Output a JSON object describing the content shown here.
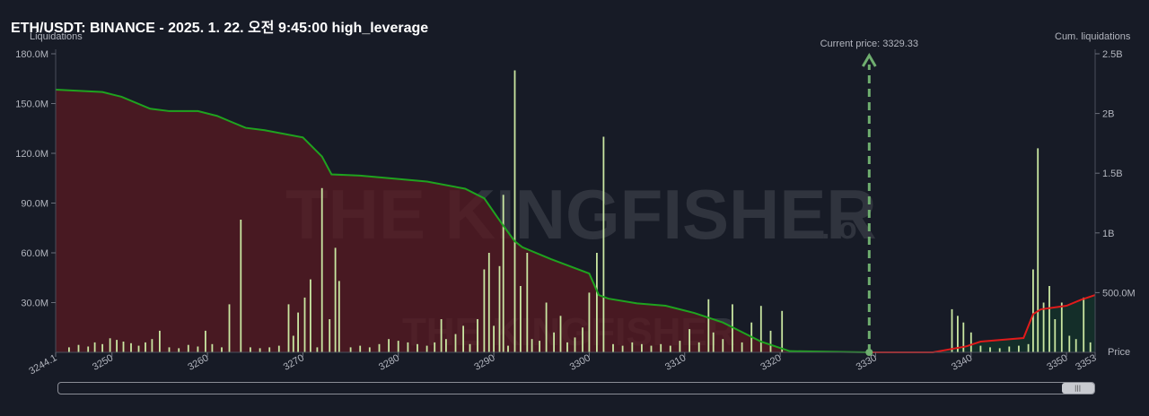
{
  "title": "ETH/USDT: BINANCE - 2025. 1. 22. 오전 9:45:00 high_leverage",
  "watermark": {
    "main": "THE KINGFISHER",
    "suffix": ".io"
  },
  "colors": {
    "background": "#171b26",
    "bars": "#c9e6a1",
    "cum_short": "#1fa31f",
    "cum_long": "#e01b1b",
    "fill_short": "#5a1a22",
    "fill_long": "#14332a",
    "current_price": "#6fae6f"
  },
  "chart_data": {
    "type": "bar",
    "title": "ETH/USDT: BINANCE - 2025. 1. 22. 오전 9:45:00 high_leverage",
    "xlabel": "Price",
    "ylabel": "Liquidations",
    "y2label": "Cum. liquidations",
    "xlim": [
      3244.1,
      3353
    ],
    "ylim": [
      0,
      180000000
    ],
    "y2lim": [
      0,
      2500000000
    ],
    "x_ticks": [
      "3244.1",
      "3250",
      "3260",
      "3270",
      "3280",
      "3290",
      "3300",
      "3310",
      "3320",
      "3330",
      "3340",
      "3350",
      "3353"
    ],
    "y_ticks": [
      "180.0M",
      "150.0M",
      "120.0M",
      "90.0M",
      "60.0M",
      "30.0M"
    ],
    "y2_ticks": [
      "2.5B",
      "2B",
      "1.5B",
      "1B",
      "500.0M"
    ],
    "current_price": {
      "label": "Current price: 3329.33",
      "value": 3329.33
    },
    "bars": [
      [
        3245.5,
        3000000
      ],
      [
        3246.5,
        4500000
      ],
      [
        3247.5,
        3500000
      ],
      [
        3248.2,
        6000000
      ],
      [
        3249.0,
        5000000
      ],
      [
        3249.8,
        8500000
      ],
      [
        3250.5,
        7500000
      ],
      [
        3251.2,
        6500000
      ],
      [
        3252.0,
        5500000
      ],
      [
        3252.8,
        4000000
      ],
      [
        3253.5,
        6000000
      ],
      [
        3254.2,
        8000000
      ],
      [
        3255.0,
        13000000
      ],
      [
        3256.0,
        3000000
      ],
      [
        3257.0,
        2500000
      ],
      [
        3258.0,
        4500000
      ],
      [
        3259.0,
        3500000
      ],
      [
        3259.8,
        13000000
      ],
      [
        3260.5,
        5000000
      ],
      [
        3261.5,
        3000000
      ],
      [
        3262.3,
        29000000
      ],
      [
        3263.5,
        80000000
      ],
      [
        3264.5,
        3000000
      ],
      [
        3265.5,
        2500000
      ],
      [
        3266.5,
        3000000
      ],
      [
        3267.5,
        4000000
      ],
      [
        3268.5,
        29000000
      ],
      [
        3269.0,
        10000000
      ],
      [
        3269.5,
        24000000
      ],
      [
        3270.2,
        33000000
      ],
      [
        3270.8,
        44000000
      ],
      [
        3271.5,
        3000000
      ],
      [
        3272.0,
        99000000
      ],
      [
        3272.8,
        20000000
      ],
      [
        3273.4,
        63000000
      ],
      [
        3273.8,
        43000000
      ],
      [
        3275.0,
        3000000
      ],
      [
        3276.0,
        4000000
      ],
      [
        3277.0,
        3000000
      ],
      [
        3278.0,
        5000000
      ],
      [
        3279.0,
        8000000
      ],
      [
        3280.0,
        7000000
      ],
      [
        3281.0,
        6000000
      ],
      [
        3282.0,
        5000000
      ],
      [
        3283.0,
        4000000
      ],
      [
        3283.8,
        6000000
      ],
      [
        3284.5,
        20000000
      ],
      [
        3285.0,
        8000000
      ],
      [
        3286.0,
        11000000
      ],
      [
        3286.8,
        16000000
      ],
      [
        3287.5,
        5000000
      ],
      [
        3288.3,
        20000000
      ],
      [
        3289.0,
        50000000
      ],
      [
        3289.5,
        60000000
      ],
      [
        3290.0,
        16000000
      ],
      [
        3290.6,
        52000000
      ],
      [
        3291.0,
        95000000
      ],
      [
        3291.5,
        4000000
      ],
      [
        3292.2,
        170000000
      ],
      [
        3292.8,
        40000000
      ],
      [
        3293.5,
        60000000
      ],
      [
        3294.0,
        8000000
      ],
      [
        3294.8,
        7000000
      ],
      [
        3295.5,
        30000000
      ],
      [
        3296.3,
        12000000
      ],
      [
        3297.0,
        22000000
      ],
      [
        3297.7,
        6000000
      ],
      [
        3298.5,
        9000000
      ],
      [
        3299.3,
        15000000
      ],
      [
        3300.0,
        36000000
      ],
      [
        3300.8,
        60000000
      ],
      [
        3301.5,
        130000000
      ],
      [
        3302.5,
        5000000
      ],
      [
        3303.5,
        4000000
      ],
      [
        3304.5,
        6000000
      ],
      [
        3305.5,
        5000000
      ],
      [
        3306.5,
        4000000
      ],
      [
        3307.5,
        5000000
      ],
      [
        3308.5,
        4000000
      ],
      [
        3309.5,
        7000000
      ],
      [
        3310.5,
        14000000
      ],
      [
        3311.5,
        6000000
      ],
      [
        3312.5,
        32000000
      ],
      [
        3313.0,
        12000000
      ],
      [
        3314.0,
        8000000
      ],
      [
        3315.0,
        29000000
      ],
      [
        3316.0,
        6000000
      ],
      [
        3317.0,
        18000000
      ],
      [
        3318.0,
        28000000
      ],
      [
        3319.0,
        13000000
      ],
      [
        3320.2,
        25000000
      ],
      [
        3338.0,
        26000000
      ],
      [
        3338.6,
        22000000
      ],
      [
        3339.2,
        18000000
      ],
      [
        3340.0,
        12000000
      ],
      [
        3341.0,
        4000000
      ],
      [
        3342.0,
        3000000
      ],
      [
        3343.0,
        2500000
      ],
      [
        3344.0,
        3500000
      ],
      [
        3345.0,
        4000000
      ],
      [
        3346.0,
        5000000
      ],
      [
        3346.5,
        50000000
      ],
      [
        3347.0,
        123000000
      ],
      [
        3347.6,
        30000000
      ],
      [
        3348.2,
        40000000
      ],
      [
        3348.8,
        20000000
      ],
      [
        3349.5,
        30000000
      ],
      [
        3350.3,
        10000000
      ],
      [
        3351.0,
        8000000
      ],
      [
        3351.8,
        33000000
      ],
      [
        3352.5,
        6000000
      ]
    ],
    "cumulative_short_side": {
      "x": [
        3244.1,
        3249.0,
        3251.0,
        3254.0,
        3256.0,
        3259.0,
        3261.0,
        3264.0,
        3266.0,
        3270.0,
        3272.0,
        3273.0,
        3276.0,
        3283.0,
        3287.0,
        3289.0,
        3291.0,
        3292.2,
        3293.0,
        3296.0,
        3298.0,
        3300.0,
        3301.0,
        3302.0,
        3305.0,
        3308.0,
        3311.0,
        3314.0,
        3316.0,
        3318.0,
        3321.0,
        3329.33
      ],
      "y": [
        2200000000,
        2180000000,
        2140000000,
        2040000000,
        2020000000,
        2020000000,
        1980000000,
        1880000000,
        1860000000,
        1800000000,
        1640000000,
        1490000000,
        1480000000,
        1430000000,
        1370000000,
        1290000000,
        1060000000,
        930000000,
        880000000,
        780000000,
        720000000,
        660000000,
        480000000,
        450000000,
        410000000,
        390000000,
        330000000,
        250000000,
        170000000,
        90000000,
        10000000,
        0
      ]
    },
    "cumulative_long_side": {
      "x": [
        3329.33,
        3336.0,
        3339.5,
        3341.0,
        3345.5,
        3346.5,
        3347.3,
        3350.0,
        3351.5,
        3353.0
      ],
      "y": [
        0,
        0,
        50000000,
        90000000,
        120000000,
        320000000,
        360000000,
        390000000,
        440000000,
        480000000
      ]
    }
  }
}
